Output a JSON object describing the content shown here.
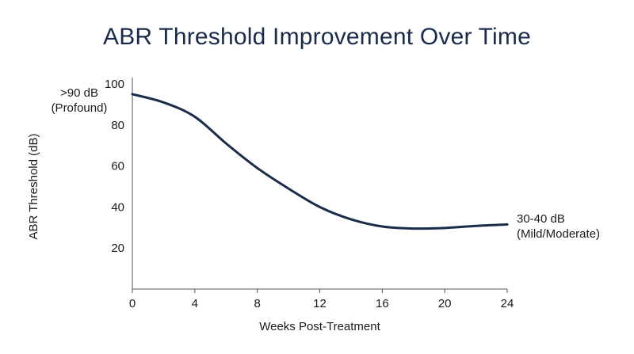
{
  "chart_data": {
    "type": "line",
    "title": "ABR Threshold Improvement Over Time",
    "xlabel": "Weeks Post-Treatment",
    "ylabel": "ABR Threshold (dB)",
    "xlim": [
      0,
      24
    ],
    "ylim": [
      0,
      100
    ],
    "x_ticks": [
      0,
      4,
      8,
      12,
      16,
      20,
      24
    ],
    "y_ticks": [
      20,
      40,
      60,
      80,
      100
    ],
    "grid": false,
    "line_color": "#1a2b4c",
    "series": [
      {
        "x": [
          0,
          2,
          4,
          6,
          8,
          10,
          12,
          14,
          16,
          18,
          20,
          22,
          24
        ],
        "y": [
          95,
          91,
          84,
          71,
          59,
          49,
          40,
          34,
          30.5,
          29.5,
          29.8,
          30.8,
          31.5
        ]
      }
    ],
    "annotations": [
      {
        "lines": [
          ">90 dB",
          "(Profound)"
        ],
        "anchor": "top-left"
      },
      {
        "lines": [
          "30-40 dB",
          "(Mild/Moderate)"
        ],
        "anchor": "right-end"
      }
    ]
  }
}
